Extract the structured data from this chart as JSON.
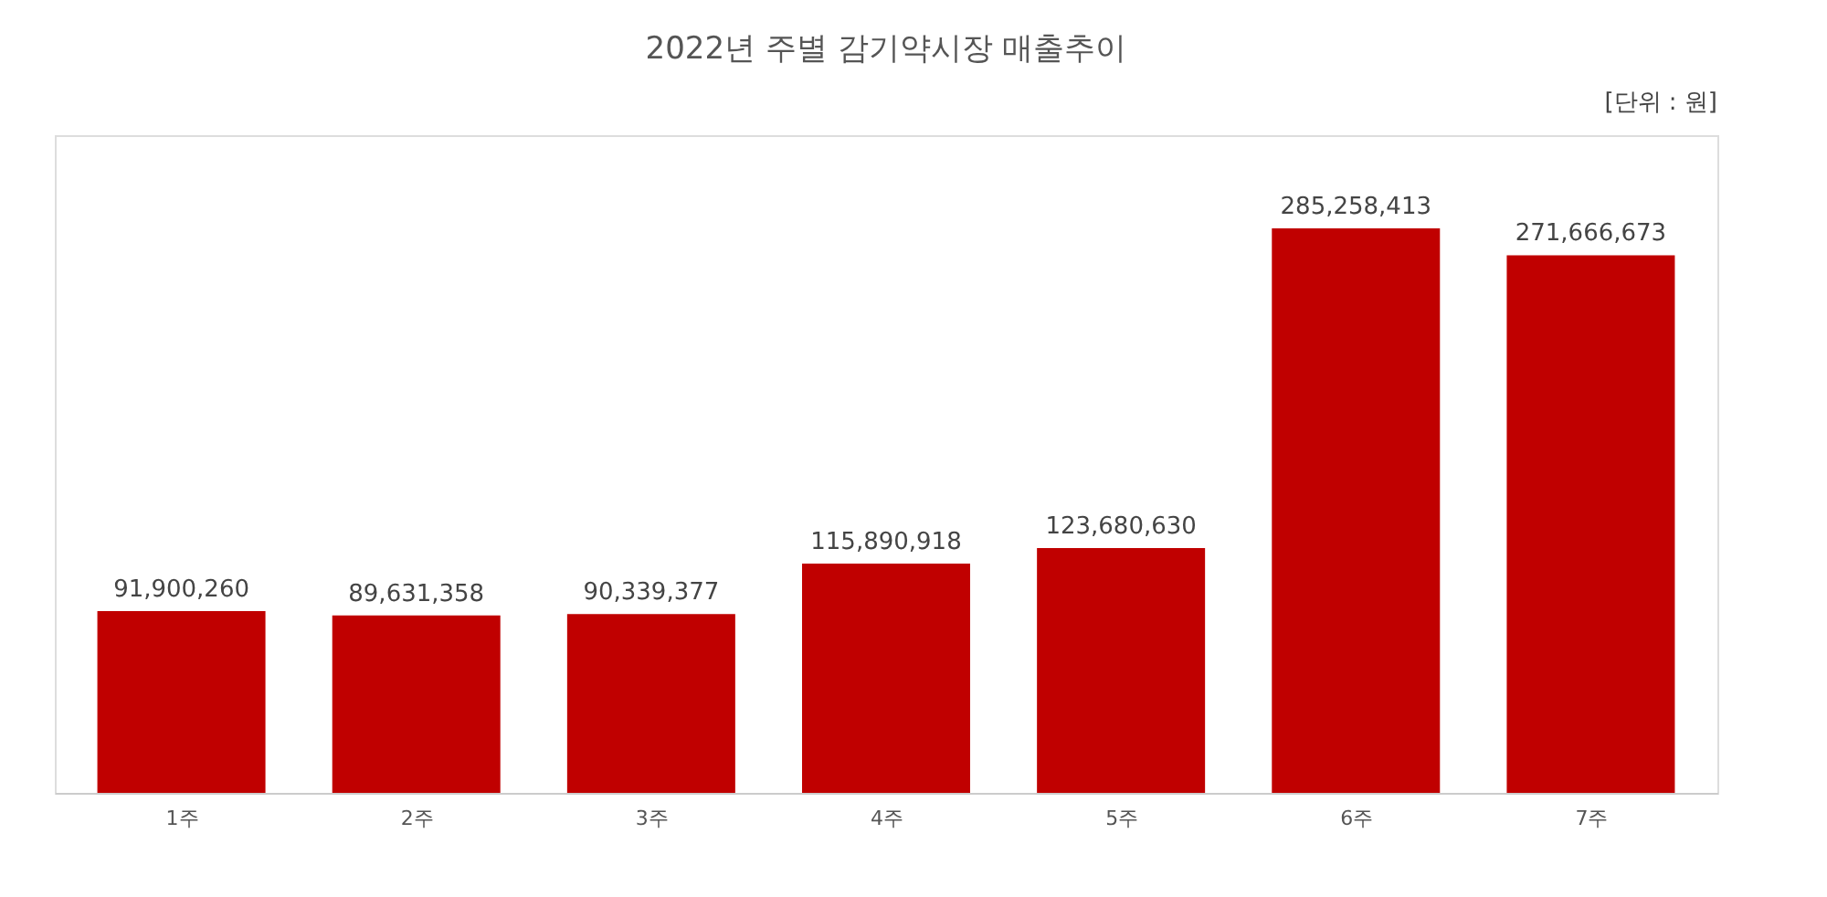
{
  "chart_data": {
    "type": "bar",
    "title": "2022년 주별 감기약시장 매출추이",
    "annotations": [
      "[단위 : 원]"
    ],
    "categories": [
      "1주",
      "2주",
      "3주",
      "4주",
      "5주",
      "6주",
      "7주"
    ],
    "series": [
      {
        "color": "#c00000",
        "values": [
          91900260,
          89631358,
          90339377,
          115890918,
          123680630,
          285258413,
          271666673
        ],
        "value_labels": [
          "91,900,260",
          "89,631,358",
          "90,339,377",
          "115,890,918",
          "123,680,630",
          "285,258,413",
          "271,666,673"
        ]
      }
    ],
    "grid": false
  }
}
